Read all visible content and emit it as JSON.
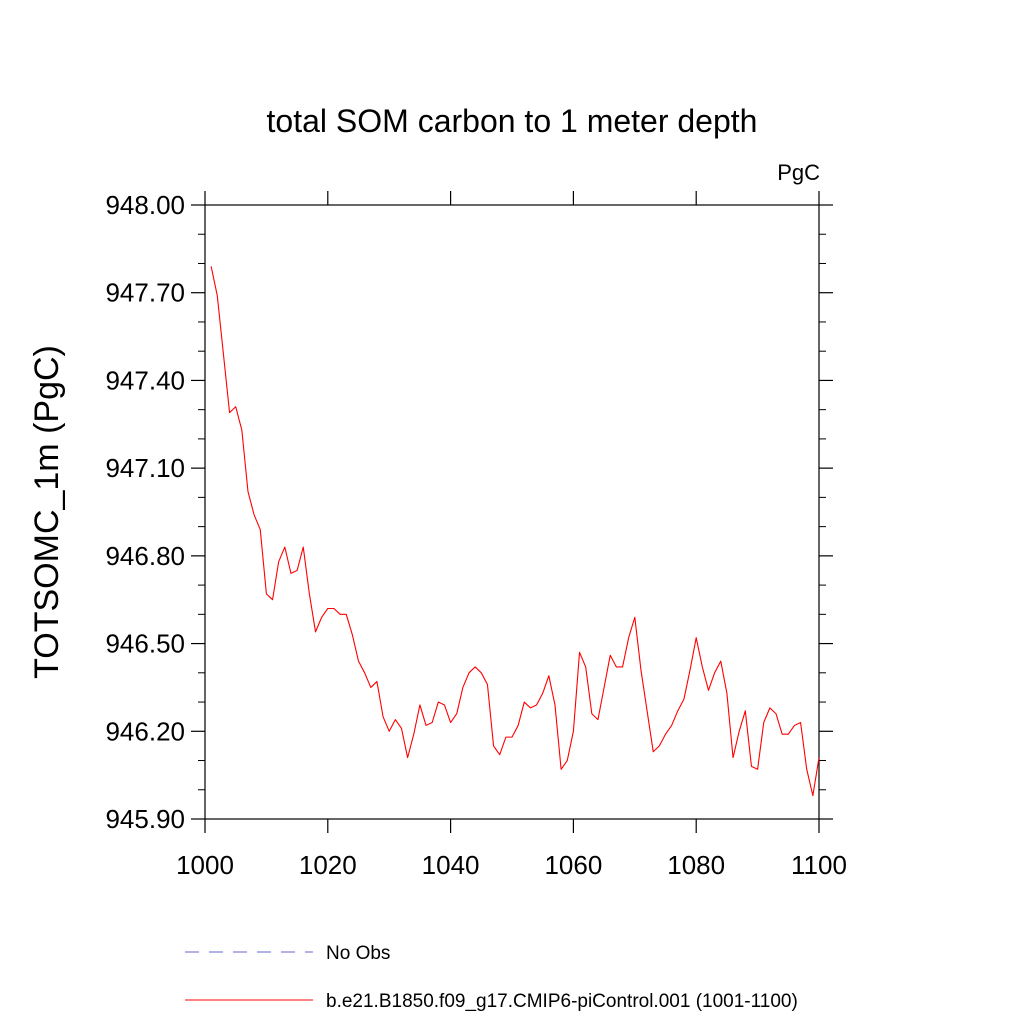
{
  "chart_data": {
    "type": "line",
    "title": "total SOM carbon to 1 meter depth",
    "units_label": "PgC",
    "xlabel": "",
    "ylabel": "TOTSOMC_1m  (PgC)",
    "xlim": [
      1000,
      1100
    ],
    "ylim": [
      945.9,
      948.0
    ],
    "x_ticks": [
      1000,
      1020,
      1040,
      1060,
      1080,
      1100
    ],
    "x_tick_labels": [
      "1000",
      "1020",
      "1040",
      "1060",
      "1080",
      "1100"
    ],
    "y_ticks": [
      945.9,
      946.2,
      946.5,
      946.8,
      947.1,
      947.4,
      947.7,
      948.0
    ],
    "y_tick_labels": [
      "945.90",
      "946.20",
      "946.50",
      "946.80",
      "947.10",
      "947.40",
      "947.70",
      "948.00"
    ],
    "grid": false,
    "legend_position": "bottom",
    "series": [
      {
        "name": "No Obs",
        "color": "#6666cc",
        "dash": true,
        "x": [],
        "values": []
      },
      {
        "name": "b.e21.B1850.f09_g17.CMIP6-piControl.001 (1001-1100)",
        "color": "#ff0000",
        "dash": false,
        "x": [
          1001,
          1002,
          1003,
          1004,
          1005,
          1006,
          1007,
          1008,
          1009,
          1010,
          1011,
          1012,
          1013,
          1014,
          1015,
          1016,
          1017,
          1018,
          1019,
          1020,
          1021,
          1022,
          1023,
          1024,
          1025,
          1026,
          1027,
          1028,
          1029,
          1030,
          1031,
          1032,
          1033,
          1034,
          1035,
          1036,
          1037,
          1038,
          1039,
          1040,
          1041,
          1042,
          1043,
          1044,
          1045,
          1046,
          1047,
          1048,
          1049,
          1050,
          1051,
          1052,
          1053,
          1054,
          1055,
          1056,
          1057,
          1058,
          1059,
          1060,
          1061,
          1062,
          1063,
          1064,
          1065,
          1066,
          1067,
          1068,
          1069,
          1070,
          1071,
          1072,
          1073,
          1074,
          1075,
          1076,
          1077,
          1078,
          1079,
          1080,
          1081,
          1082,
          1083,
          1084,
          1085,
          1086,
          1087,
          1088,
          1089,
          1090,
          1091,
          1092,
          1093,
          1094,
          1095,
          1096,
          1097,
          1098,
          1099,
          1100
        ],
        "values": [
          947.79,
          947.69,
          947.49,
          947.29,
          947.31,
          947.23,
          947.02,
          946.94,
          946.89,
          946.67,
          946.65,
          946.78,
          946.83,
          946.74,
          946.75,
          946.83,
          946.67,
          946.54,
          946.59,
          946.62,
          946.62,
          946.6,
          946.6,
          946.53,
          946.44,
          946.4,
          946.35,
          946.37,
          946.25,
          946.2,
          946.24,
          946.21,
          946.11,
          946.19,
          946.29,
          946.22,
          946.23,
          946.3,
          946.29,
          946.23,
          946.26,
          946.35,
          946.4,
          946.42,
          946.4,
          946.36,
          946.15,
          946.12,
          946.18,
          946.18,
          946.22,
          946.3,
          946.28,
          946.29,
          946.33,
          946.39,
          946.29,
          946.07,
          946.1,
          946.2,
          946.47,
          946.42,
          946.26,
          946.24,
          946.35,
          946.46,
          946.42,
          946.42,
          946.52,
          946.59,
          946.41,
          946.27,
          946.13,
          946.15,
          946.19,
          946.22,
          946.27,
          946.31,
          946.41,
          946.52,
          946.42,
          946.34,
          946.4,
          946.44,
          946.33,
          946.11,
          946.2,
          946.27,
          946.08,
          946.07,
          946.23,
          946.28,
          946.26,
          946.19,
          946.19,
          946.22,
          946.23,
          946.07,
          945.98,
          946.11
        ]
      }
    ]
  }
}
